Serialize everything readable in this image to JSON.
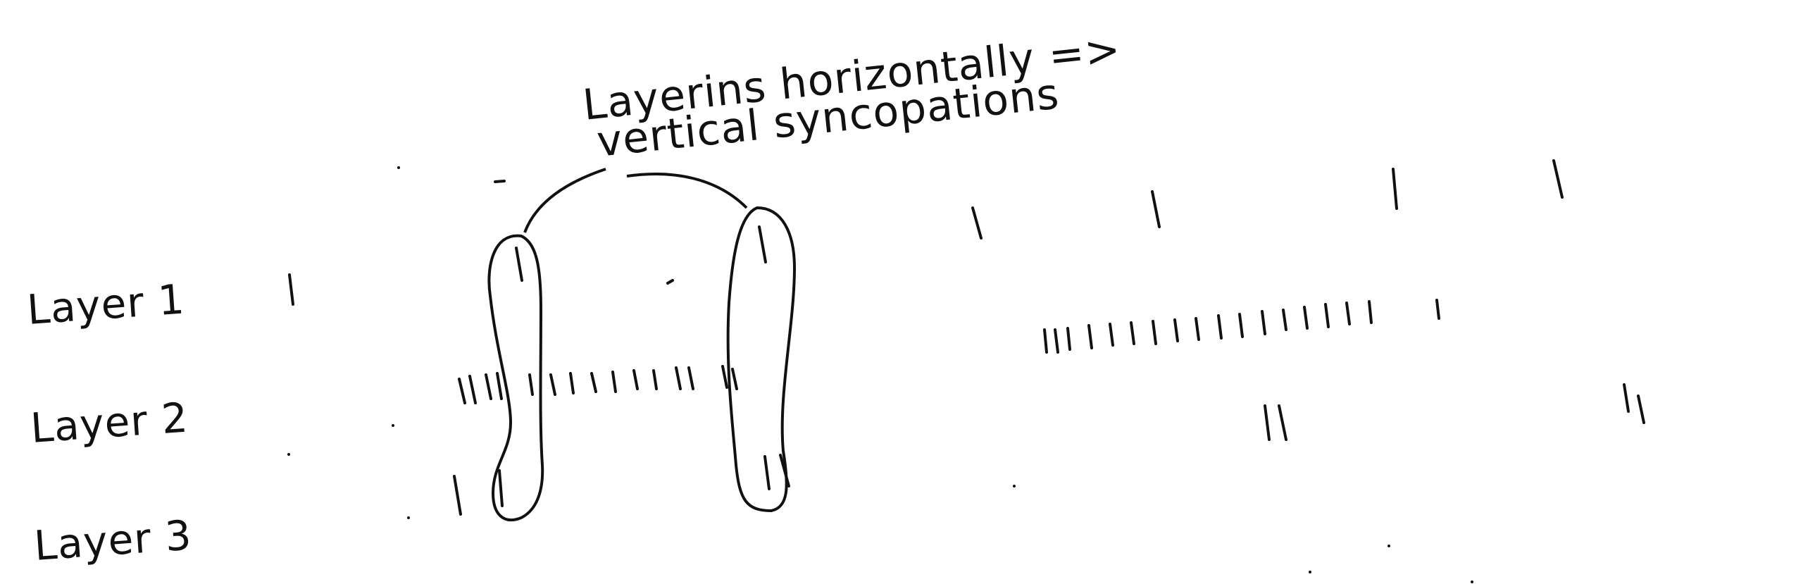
{
  "annotation": {
    "line1": "Layerins horizontally =>",
    "line2": "vertical syncopations"
  },
  "layers": [
    {
      "label": "Layer 1"
    },
    {
      "label": "Layer 2"
    },
    {
      "label": "Layer 3"
    }
  ]
}
